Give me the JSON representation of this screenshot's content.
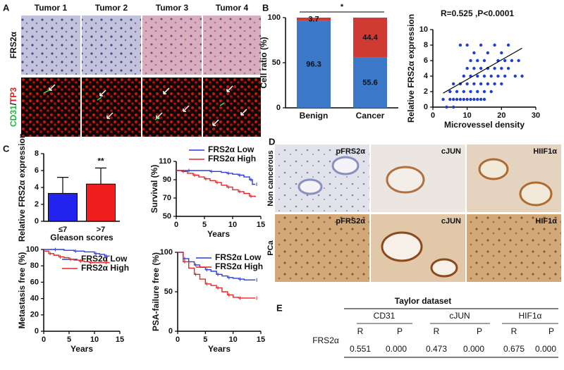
{
  "panel_letters": [
    "A",
    "B",
    "C",
    "D",
    "E"
  ],
  "panel_a": {
    "columns": [
      "Tumor 1",
      "Tumor 2",
      "Tumor 3",
      "Tumor 4"
    ],
    "row_label_1": "FRS2α",
    "row_label_2": [
      "CD31",
      "/",
      "TP3"
    ]
  },
  "panel_d": {
    "row_labels": [
      "Non cancerous",
      "PCa"
    ],
    "top_labels": [
      "pFRS2α",
      "cJUN",
      "HIIF1α"
    ],
    "bottom_labels": [
      "pFRS2α",
      "cJUN",
      "HIF1α"
    ]
  },
  "table": {
    "title": "Taylor dataset",
    "row_label": "FRS2α",
    "groups": [
      "CD31",
      "cJUN",
      "HIF1α"
    ],
    "subheaders": [
      "R",
      "P",
      "R",
      "P",
      "R",
      "P"
    ],
    "values": [
      "0.551",
      "0.000",
      "0.473",
      "0.000",
      "0.675",
      "0.000"
    ]
  },
  "chart_data": [
    {
      "type": "stacked_bar",
      "ylabel": "Cell ratio (%)",
      "annotation": "*",
      "categories": [
        "Benign",
        "Cancer"
      ],
      "series": [
        {
          "color": "#3b78c8",
          "values": [
            96.3,
            55.6
          ]
        },
        {
          "color": "#cf3b32",
          "values": [
            3.7,
            44.4
          ]
        }
      ],
      "ylim": [
        0,
        100
      ],
      "yticks": [
        0,
        50,
        100
      ]
    },
    {
      "type": "scatter",
      "title": "R=0.525 ,P<0.0001",
      "xlabel": "Microvessel density",
      "ylabel": "Relative FRS2α expression",
      "color": "#1f3fd0",
      "x": [
        4,
        5,
        6,
        7,
        8,
        9,
        10,
        11,
        12,
        13,
        14,
        15,
        3,
        5,
        7,
        9,
        11,
        13,
        15,
        17,
        6,
        8,
        10,
        12,
        14,
        16,
        18,
        20,
        9,
        11,
        13,
        15,
        17,
        19,
        21,
        10,
        12,
        14,
        16,
        18,
        20,
        22,
        24,
        11,
        13,
        15,
        19,
        21,
        23,
        26,
        12,
        16,
        20,
        8,
        10,
        14,
        18,
        22,
        25,
        6
      ],
      "y": [
        0,
        1,
        1,
        1,
        1,
        1,
        1,
        1,
        1,
        1,
        1,
        1,
        1,
        2,
        2,
        2,
        2,
        2,
        2,
        2,
        3,
        3,
        3,
        3,
        3,
        3,
        3,
        3,
        4,
        4,
        4,
        4,
        4,
        4,
        4,
        5,
        5,
        5,
        5,
        5,
        5,
        5,
        4,
        6,
        6,
        6,
        6,
        6,
        6,
        4,
        7,
        7,
        7,
        8,
        8,
        8,
        8,
        8,
        6,
        0
      ],
      "fit_line": {
        "x": [
          3,
          26
        ],
        "y": [
          1.8,
          7.6
        ]
      },
      "xlim": [
        0,
        30
      ],
      "xticks": [
        0,
        10,
        20,
        30
      ],
      "ylim": [
        0,
        10
      ],
      "yticks": [
        0,
        2,
        4,
        6,
        8,
        10
      ]
    },
    {
      "type": "bar",
      "ylabel": "Relative FRS2α expression",
      "xlabel": "Gleason scores",
      "annotation": "**",
      "categories": [
        "≤7",
        ">7"
      ],
      "values": [
        3.3,
        4.4
      ],
      "errors": [
        1.9,
        1.9
      ],
      "colors": [
        "#2323f0",
        "#f01e1e"
      ],
      "ylim": [
        0,
        8
      ],
      "yticks": [
        0,
        2,
        4,
        6,
        8
      ]
    },
    {
      "type": "step",
      "xlabel": "Years",
      "ylabel": "Survival (%)",
      "series": [
        {
          "name": "FRS2α Low",
          "color": "#2a3ce0",
          "x": [
            0,
            2,
            4,
            6,
            8,
            9,
            10,
            11,
            12,
            13,
            13.5,
            14
          ],
          "values": [
            100,
            100,
            100,
            99,
            98,
            97,
            96,
            95,
            93,
            90,
            85,
            85
          ]
        },
        {
          "name": "FRS2α High",
          "color": "#e52424",
          "x": [
            0,
            1,
            2,
            3,
            4,
            5,
            6,
            7,
            8,
            9,
            10,
            11,
            12,
            13,
            14
          ],
          "values": [
            100,
            99,
            97,
            95,
            93,
            91,
            89,
            87,
            84,
            82,
            79,
            77,
            75,
            72,
            71
          ]
        }
      ],
      "xlim": [
        0,
        15
      ],
      "xticks": [
        0,
        5,
        10,
        15
      ],
      "ylim": [
        50,
        110
      ],
      "yticks": [
        50,
        70,
        90,
        110
      ]
    },
    {
      "type": "step",
      "xlabel": "Years",
      "ylabel": "Metastasis free (%)",
      "series": [
        {
          "name": "FRS2α Low",
          "color": "#2a3ce0",
          "x": [
            0,
            2,
            4,
            6,
            8,
            10,
            11,
            12,
            13
          ],
          "values": [
            100,
            100,
            99,
            98,
            97,
            95,
            94,
            92,
            92
          ]
        },
        {
          "name": "FRS2α High",
          "color": "#e52424",
          "x": [
            0,
            1,
            2,
            3,
            4,
            5,
            6,
            7,
            8,
            9,
            10,
            12,
            13
          ],
          "values": [
            98,
            95,
            93,
            91,
            90,
            88,
            87,
            86,
            85,
            84,
            84,
            84,
            84
          ]
        }
      ],
      "xlim": [
        0,
        15
      ],
      "xticks": [
        0,
        5,
        10,
        15
      ],
      "ylim": [
        0,
        100
      ],
      "yticks": [
        0,
        20,
        40,
        60,
        80,
        100
      ]
    },
    {
      "type": "step",
      "xlabel": "Years",
      "ylabel": "PSA-failure free (%)",
      "series": [
        {
          "name": "FRS2α Low",
          "color": "#2a3ce0",
          "x": [
            0,
            1,
            2,
            3,
            4,
            5,
            6,
            7,
            8,
            9,
            10,
            11,
            12,
            14
          ],
          "values": [
            100,
            92,
            88,
            84,
            81,
            78,
            76,
            72,
            70,
            68,
            67,
            66,
            65,
            65
          ]
        },
        {
          "name": "FRS2α High",
          "color": "#e52424",
          "x": [
            0,
            1,
            2,
            3,
            4,
            5,
            6,
            7,
            8,
            9,
            10,
            11,
            12,
            14
          ],
          "values": [
            100,
            88,
            80,
            72,
            66,
            60,
            58,
            55,
            50,
            46,
            43,
            42,
            42,
            42
          ]
        }
      ],
      "xlim": [
        0,
        15
      ],
      "xticks": [
        0,
        5,
        10,
        15
      ],
      "ylim": [
        0,
        100
      ],
      "yticks": [
        0,
        50,
        100
      ]
    }
  ]
}
